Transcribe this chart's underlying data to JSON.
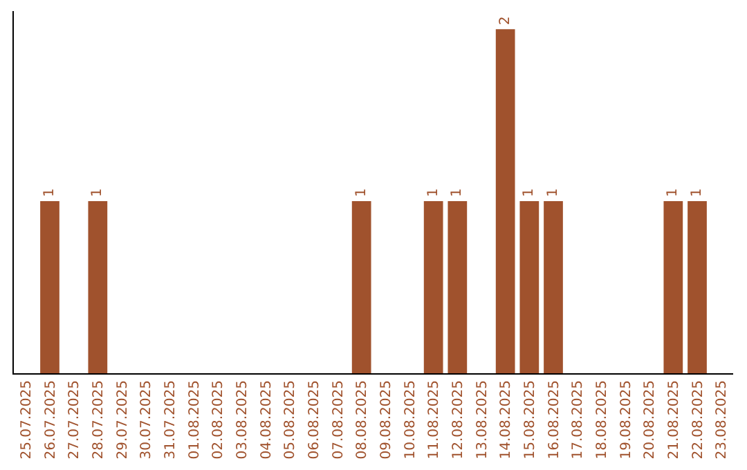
{
  "chart_data": {
    "type": "bar",
    "categories": [
      "25.07.2025",
      "26.07.2025",
      "27.07.2025",
      "28.07.2025",
      "29.07.2025",
      "30.07.2025",
      "31.07.2025",
      "01.08.2025",
      "02.08.2025",
      "03.08.2025",
      "04.08.2025",
      "05.08.2025",
      "06.08.2025",
      "07.08.2025",
      "08.08.2025",
      "09.08.2025",
      "10.08.2025",
      "11.08.2025",
      "12.08.2025",
      "13.08.2025",
      "14.08.2025",
      "15.08.2025",
      "16.08.2025",
      "17.08.2025",
      "18.08.2025",
      "19.08.2025",
      "20.08.2025",
      "21.08.2025",
      "22.08.2025",
      "23.08.2025"
    ],
    "values": [
      0,
      1,
      0,
      1,
      0,
      0,
      0,
      0,
      0,
      0,
      0,
      0,
      0,
      0,
      1,
      0,
      0,
      1,
      1,
      0,
      2,
      1,
      1,
      0,
      0,
      0,
      0,
      1,
      1,
      0
    ],
    "value_labels": [
      null,
      "1",
      null,
      "1",
      null,
      null,
      null,
      null,
      null,
      null,
      null,
      null,
      null,
      null,
      "1",
      null,
      null,
      "1",
      "1",
      null,
      "2",
      "1",
      "1",
      null,
      null,
      null,
      null,
      "1",
      "1",
      null
    ],
    "color": "#a0522d"
  }
}
